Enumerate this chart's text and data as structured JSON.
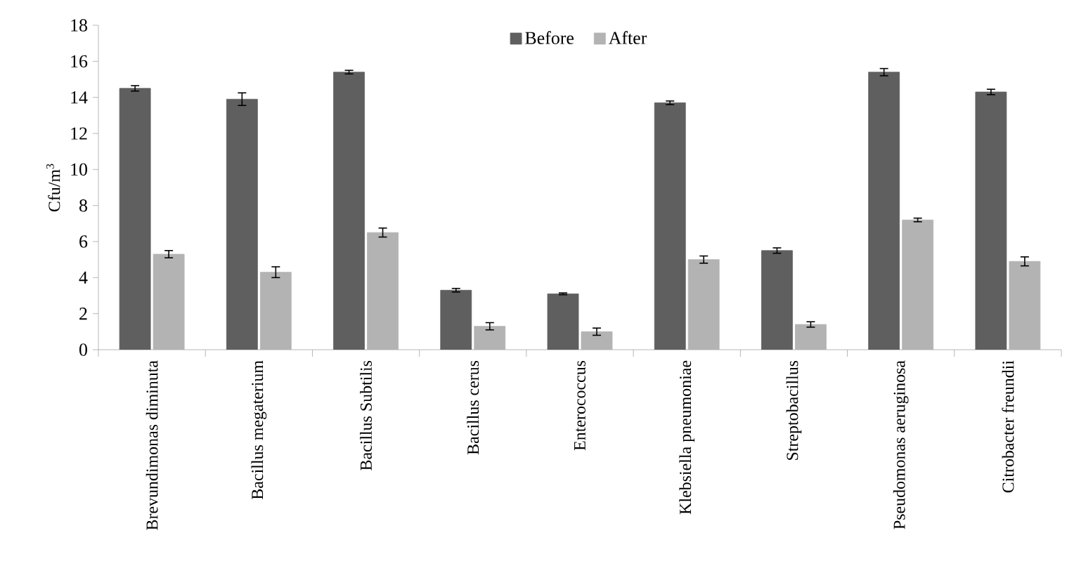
{
  "chart_data": {
    "type": "bar",
    "ylabel": "Cfu/m$^{3}$",
    "categories": [
      "Brevundimonas diminuta",
      "Bacillus megaterium",
      "Bacillus Subtilis",
      "Bacillus cerus",
      "Enterococcus",
      "Klebsiella pneumoniae",
      "Streptobacillus",
      "Pseudomonas aeruginosa",
      "Citrobacter freundii"
    ],
    "series": [
      {
        "name": "Before",
        "color": "#5f5f5f",
        "values": [
          14.5,
          13.9,
          15.4,
          3.3,
          3.1,
          13.7,
          5.5,
          15.4,
          14.3
        ],
        "errors": [
          0.15,
          0.35,
          0.1,
          0.1,
          0.05,
          0.1,
          0.15,
          0.2,
          0.15
        ]
      },
      {
        "name": "After",
        "color": "#b3b3b3",
        "values": [
          5.3,
          4.3,
          6.5,
          1.3,
          1.0,
          5.0,
          1.4,
          7.2,
          4.9
        ],
        "errors": [
          0.2,
          0.3,
          0.25,
          0.2,
          0.2,
          0.2,
          0.15,
          0.1,
          0.25
        ]
      }
    ],
    "ylim": [
      0,
      18
    ],
    "yticks": [
      0,
      2,
      4,
      6,
      8,
      10,
      12,
      14,
      16,
      18
    ],
    "grid": false,
    "legend": "top"
  }
}
